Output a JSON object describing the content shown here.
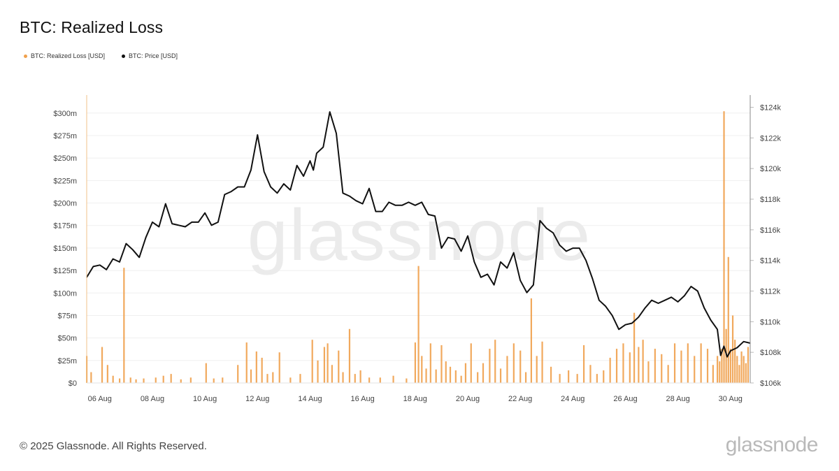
{
  "header": {
    "title": "BTC: Realized Loss"
  },
  "legend": [
    {
      "label": "BTC: Realized Loss [USD]",
      "color": "#f0a04b"
    },
    {
      "label": "BTC: Price [USD]",
      "color": "#111111"
    }
  ],
  "watermark": "glassnode",
  "footer": {
    "copyright": "© 2025 Glassnode. All Rights Reserved.",
    "logo": "glassnode"
  },
  "chart_data": {
    "type": "bar+line",
    "title": "BTC: Realized Loss",
    "x_ticks": [
      "06 Aug",
      "08 Aug",
      "10 Aug",
      "12 Aug",
      "14 Aug",
      "16 Aug",
      "18 Aug",
      "20 Aug",
      "22 Aug",
      "24 Aug",
      "26 Aug",
      "28 Aug",
      "30 Aug"
    ],
    "x_range": [
      "2025-08-05T12:00",
      "2025-08-30T18:00"
    ],
    "left_axis": {
      "series": "BTC: Realized Loss [USD]",
      "ylim": [
        0,
        320
      ],
      "unit": "millions USD",
      "tick_values": [
        0,
        25,
        50,
        75,
        100,
        125,
        150,
        175,
        200,
        225,
        250,
        275,
        300
      ],
      "tick_labels": [
        "$0",
        "$25m",
        "$50m",
        "$75m",
        "$100m",
        "$125m",
        "$150m",
        "$175m",
        "$200m",
        "$225m",
        "$250m",
        "$275m",
        "$300m"
      ]
    },
    "right_axis": {
      "series": "BTC: Price [USD]",
      "ylim": [
        106000,
        124800
      ],
      "tick_values": [
        106000,
        108000,
        110000,
        112000,
        114000,
        116000,
        118000,
        120000,
        122000,
        124000
      ],
      "tick_labels": [
        "$106k",
        "$108k",
        "$110k",
        "$112k",
        "$114k",
        "$116k",
        "$118k",
        "$120k",
        "$122k",
        "$124k"
      ]
    },
    "series": [
      {
        "name": "BTC: Realized Loss [USD]",
        "type": "bar",
        "color": "#f0a04b",
        "x": [
          "2025-08-05T12:00",
          "2025-08-05T16:00",
          "2025-08-06T02:00",
          "2025-08-06T07:00",
          "2025-08-06T12:00",
          "2025-08-06T18:00",
          "2025-08-06T22:00",
          "2025-08-07T04:00",
          "2025-08-07T09:00",
          "2025-08-07T16:00",
          "2025-08-08T03:00",
          "2025-08-08T10:00",
          "2025-08-08T17:00",
          "2025-08-09T02:00",
          "2025-08-09T11:00",
          "2025-08-10T01:00",
          "2025-08-10T08:00",
          "2025-08-10T16:00",
          "2025-08-11T06:00",
          "2025-08-11T14:00",
          "2025-08-11T18:00",
          "2025-08-11T23:00",
          "2025-08-12T04:00",
          "2025-08-12T09:00",
          "2025-08-12T14:00",
          "2025-08-12T20:00",
          "2025-08-13T06:00",
          "2025-08-13T15:00",
          "2025-08-14T02:00",
          "2025-08-14T07:00",
          "2025-08-14T13:00",
          "2025-08-14T16:00",
          "2025-08-14T20:00",
          "2025-08-15T02:00",
          "2025-08-15T06:00",
          "2025-08-15T12:00",
          "2025-08-15T17:00",
          "2025-08-15T22:00",
          "2025-08-16T06:00",
          "2025-08-16T16:00",
          "2025-08-17T04:00",
          "2025-08-17T16:00",
          "2025-08-18T00:00",
          "2025-08-18T03:00",
          "2025-08-18T06:00",
          "2025-08-18T10:00",
          "2025-08-18T14:00",
          "2025-08-18T19:00",
          "2025-08-19T00:00",
          "2025-08-19T04:00",
          "2025-08-19T08:00",
          "2025-08-19T13:00",
          "2025-08-19T18:00",
          "2025-08-19T22:00",
          "2025-08-20T03:00",
          "2025-08-20T09:00",
          "2025-08-20T14:00",
          "2025-08-20T20:00",
          "2025-08-21T01:00",
          "2025-08-21T06:00",
          "2025-08-21T12:00",
          "2025-08-21T18:00",
          "2025-08-22T00:00",
          "2025-08-22T05:00",
          "2025-08-22T10:00",
          "2025-08-22T15:00",
          "2025-08-22T20:00",
          "2025-08-23T04:00",
          "2025-08-23T12:00",
          "2025-08-23T20:00",
          "2025-08-24T04:00",
          "2025-08-24T10:00",
          "2025-08-24T16:00",
          "2025-08-24T22:00",
          "2025-08-25T04:00",
          "2025-08-25T10:00",
          "2025-08-25T16:00",
          "2025-08-25T22:00",
          "2025-08-26T04:00",
          "2025-08-26T08:00",
          "2025-08-26T12:00",
          "2025-08-26T16:00",
          "2025-08-26T21:00",
          "2025-08-27T03:00",
          "2025-08-27T09:00",
          "2025-08-27T15:00",
          "2025-08-27T21:00",
          "2025-08-28T03:00",
          "2025-08-28T09:00",
          "2025-08-28T15:00",
          "2025-08-28T21:00",
          "2025-08-29T03:00",
          "2025-08-29T08:00",
          "2025-08-29T12:00",
          "2025-08-29T14:00",
          "2025-08-29T16:00",
          "2025-08-29T18:00",
          "2025-08-29T20:00",
          "2025-08-29T22:00",
          "2025-08-30T00:00",
          "2025-08-30T02:00",
          "2025-08-30T04:00",
          "2025-08-30T06:00",
          "2025-08-30T08:00",
          "2025-08-30T10:00",
          "2025-08-30T12:00",
          "2025-08-30T14:00",
          "2025-08-30T16:00"
        ],
        "values": [
          30,
          12,
          40,
          20,
          8,
          5,
          128,
          6,
          4,
          5,
          6,
          8,
          10,
          4,
          6,
          22,
          5,
          6,
          20,
          45,
          15,
          35,
          28,
          10,
          12,
          34,
          6,
          10,
          48,
          25,
          40,
          44,
          20,
          36,
          12,
          60,
          10,
          14,
          6,
          6,
          8,
          5,
          45,
          130,
          30,
          16,
          44,
          15,
          42,
          24,
          18,
          14,
          8,
          22,
          44,
          12,
          22,
          38,
          48,
          16,
          30,
          44,
          36,
          12,
          94,
          30,
          46,
          18,
          10,
          14,
          10,
          42,
          20,
          10,
          14,
          28,
          38,
          44,
          34,
          78,
          40,
          48,
          24,
          38,
          32,
          20,
          44,
          36,
          44,
          30,
          44,
          38,
          20,
          30,
          24,
          38,
          302,
          60,
          140,
          38,
          75,
          48,
          30,
          20,
          35,
          30,
          22,
          40
        ]
      },
      {
        "name": "BTC: Price [USD]",
        "type": "line",
        "color": "#111111",
        "x": [
          "2025-08-05T12:00",
          "2025-08-05T18:00",
          "2025-08-06T00:00",
          "2025-08-06T06:00",
          "2025-08-06T12:00",
          "2025-08-06T18:00",
          "2025-08-07T00:00",
          "2025-08-07T06:00",
          "2025-08-07T12:00",
          "2025-08-07T18:00",
          "2025-08-08T00:00",
          "2025-08-08T06:00",
          "2025-08-08T12:00",
          "2025-08-08T18:00",
          "2025-08-09T00:00",
          "2025-08-09T06:00",
          "2025-08-09T12:00",
          "2025-08-09T18:00",
          "2025-08-10T00:00",
          "2025-08-10T06:00",
          "2025-08-10T12:00",
          "2025-08-10T18:00",
          "2025-08-11T00:00",
          "2025-08-11T06:00",
          "2025-08-11T12:00",
          "2025-08-11T18:00",
          "2025-08-12T00:00",
          "2025-08-12T06:00",
          "2025-08-12T12:00",
          "2025-08-12T18:00",
          "2025-08-13T00:00",
          "2025-08-13T06:00",
          "2025-08-13T12:00",
          "2025-08-13T18:00",
          "2025-08-14T00:00",
          "2025-08-14T03:00",
          "2025-08-14T06:00",
          "2025-08-14T12:00",
          "2025-08-14T18:00",
          "2025-08-15T00:00",
          "2025-08-15T06:00",
          "2025-08-15T12:00",
          "2025-08-15T18:00",
          "2025-08-16T00:00",
          "2025-08-16T06:00",
          "2025-08-16T12:00",
          "2025-08-16T18:00",
          "2025-08-17T00:00",
          "2025-08-17T06:00",
          "2025-08-17T12:00",
          "2025-08-17T18:00",
          "2025-08-18T00:00",
          "2025-08-18T06:00",
          "2025-08-18T12:00",
          "2025-08-18T18:00",
          "2025-08-19T00:00",
          "2025-08-19T06:00",
          "2025-08-19T12:00",
          "2025-08-19T18:00",
          "2025-08-20T00:00",
          "2025-08-20T06:00",
          "2025-08-20T12:00",
          "2025-08-20T18:00",
          "2025-08-21T00:00",
          "2025-08-21T06:00",
          "2025-08-21T12:00",
          "2025-08-21T18:00",
          "2025-08-22T00:00",
          "2025-08-22T06:00",
          "2025-08-22T12:00",
          "2025-08-22T18:00",
          "2025-08-23T00:00",
          "2025-08-23T06:00",
          "2025-08-23T12:00",
          "2025-08-23T18:00",
          "2025-08-24T00:00",
          "2025-08-24T06:00",
          "2025-08-24T12:00",
          "2025-08-24T18:00",
          "2025-08-25T00:00",
          "2025-08-25T06:00",
          "2025-08-25T12:00",
          "2025-08-25T18:00",
          "2025-08-26T00:00",
          "2025-08-26T06:00",
          "2025-08-26T12:00",
          "2025-08-26T18:00",
          "2025-08-27T00:00",
          "2025-08-27T06:00",
          "2025-08-27T12:00",
          "2025-08-27T18:00",
          "2025-08-28T00:00",
          "2025-08-28T06:00",
          "2025-08-28T12:00",
          "2025-08-28T18:00",
          "2025-08-29T00:00",
          "2025-08-29T06:00",
          "2025-08-29T12:00",
          "2025-08-29T15:00",
          "2025-08-29T18:00",
          "2025-08-29T21:00",
          "2025-08-30T00:00",
          "2025-08-30T06:00",
          "2025-08-30T12:00",
          "2025-08-30T18:00"
        ],
        "values": [
          112900,
          113600,
          113700,
          113400,
          114100,
          113900,
          115100,
          114700,
          114200,
          115500,
          116500,
          116200,
          117700,
          116400,
          116300,
          116200,
          116500,
          116500,
          117100,
          116300,
          116500,
          118300,
          118500,
          118800,
          118800,
          119900,
          122200,
          119800,
          118800,
          118400,
          119000,
          118600,
          120200,
          119500,
          120500,
          119900,
          121000,
          121400,
          123700,
          122300,
          118400,
          118200,
          117900,
          117700,
          118700,
          117200,
          117200,
          117800,
          117600,
          117600,
          117800,
          117600,
          117800,
          117000,
          116900,
          114800,
          115500,
          115400,
          114600,
          115600,
          113900,
          112900,
          113100,
          112400,
          113900,
          113500,
          114500,
          112700,
          111900,
          112400,
          116600,
          116100,
          115800,
          115000,
          114600,
          114800,
          114800,
          114000,
          112800,
          111400,
          111000,
          110400,
          109500,
          109800,
          109900,
          110300,
          110900,
          111400,
          111200,
          111400,
          111600,
          111300,
          111700,
          112300,
          112000,
          110900,
          110100,
          109500,
          107800,
          108400,
          107700,
          108100,
          108300,
          108700,
          108600
        ]
      }
    ],
    "grid": true,
    "legend_position": "top-left"
  }
}
